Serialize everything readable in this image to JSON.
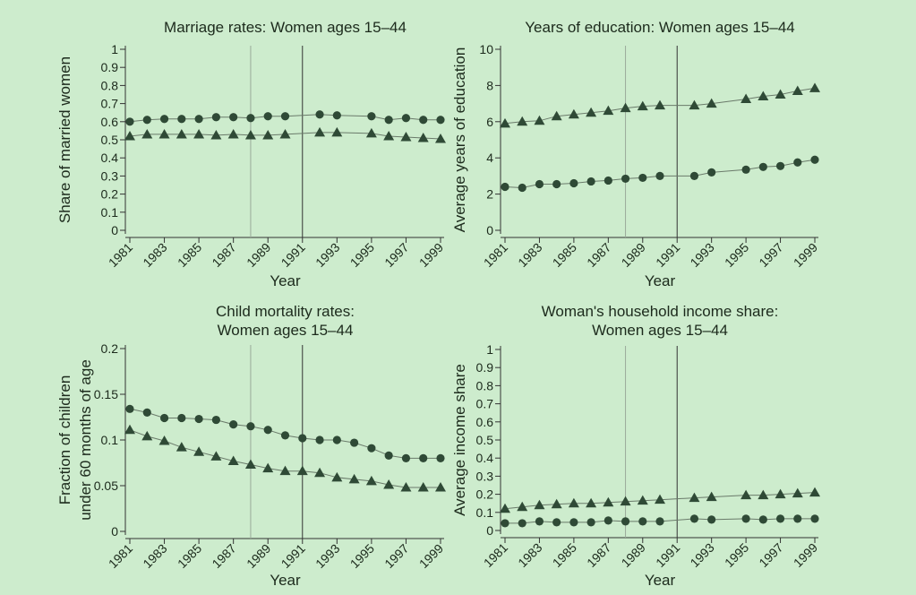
{
  "colors": {
    "background": "#cdeccd",
    "marker": "#2f4a36",
    "line": "#6a7a6a",
    "ref_light": "#9aaa9a",
    "ref_dark": "#333333"
  },
  "chart_data": [
    {
      "type": "line",
      "title": [
        "Marriage rates: Women ages 15–44"
      ],
      "xlabel": "Year",
      "ylabel": [
        "Share of married women"
      ],
      "x": [
        1981,
        1982,
        1983,
        1984,
        1985,
        1986,
        1987,
        1988,
        1989,
        1990,
        1992,
        1993,
        1995,
        1996,
        1997,
        1998,
        1999
      ],
      "xticks": [
        "1981",
        "1983",
        "1985",
        "1987",
        "1989",
        "1991",
        "1993",
        "1995",
        "1997",
        "1999"
      ],
      "ylim": [
        0,
        1
      ],
      "yticks": [
        0,
        0.1,
        0.2,
        0.3,
        0.4,
        0.5,
        0.6,
        0.7,
        0.8,
        0.9,
        1
      ],
      "ytick_labels": [
        "0",
        "0.1",
        "0.2",
        "0.3",
        "0.4",
        "0.5",
        "0.6",
        "0.7",
        "0.8",
        "0.9",
        "1"
      ],
      "reference_lines": [
        1988,
        1991
      ],
      "series": [
        {
          "marker": "circle",
          "values": [
            0.6,
            0.61,
            0.615,
            0.615,
            0.615,
            0.625,
            0.625,
            0.62,
            0.63,
            0.63,
            0.64,
            0.635,
            0.63,
            0.61,
            0.62,
            0.61,
            0.61
          ]
        },
        {
          "marker": "triangle",
          "values": [
            0.52,
            0.53,
            0.53,
            0.53,
            0.53,
            0.525,
            0.53,
            0.525,
            0.525,
            0.53,
            0.54,
            0.54,
            0.535,
            0.52,
            0.515,
            0.51,
            0.505
          ]
        }
      ]
    },
    {
      "type": "line",
      "title": [
        "Years of education: Women ages 15–44"
      ],
      "xlabel": "Year",
      "ylabel": [
        "Average years of education"
      ],
      "x": [
        1981,
        1982,
        1983,
        1984,
        1985,
        1986,
        1987,
        1988,
        1989,
        1990,
        1992,
        1993,
        1995,
        1996,
        1997,
        1998,
        1999
      ],
      "xticks": [
        "1981",
        "1983",
        "1985",
        "1987",
        "1989",
        "1991",
        "1993",
        "1995",
        "1997",
        "1999"
      ],
      "ylim": [
        0,
        10
      ],
      "yticks": [
        0,
        2,
        4,
        6,
        8,
        10
      ],
      "ytick_labels": [
        "0",
        "2",
        "4",
        "6",
        "8",
        "10"
      ],
      "reference_lines": [
        1988,
        1991
      ],
      "series": [
        {
          "marker": "circle",
          "values": [
            2.4,
            2.35,
            2.55,
            2.55,
            2.6,
            2.7,
            2.75,
            2.85,
            2.9,
            3.0,
            3.0,
            3.2,
            3.35,
            3.5,
            3.55,
            3.75,
            3.9
          ]
        },
        {
          "marker": "triangle",
          "values": [
            5.9,
            6.0,
            6.05,
            6.3,
            6.4,
            6.5,
            6.6,
            6.75,
            6.85,
            6.9,
            6.9,
            7.0,
            7.25,
            7.4,
            7.5,
            7.7,
            7.85
          ]
        }
      ]
    },
    {
      "type": "line",
      "title": [
        "Child mortality rates:",
        "Women ages 15–44"
      ],
      "xlabel": "Year",
      "ylabel": [
        "Fraction of children",
        "under 60 months of age"
      ],
      "x": [
        1981,
        1982,
        1983,
        1984,
        1985,
        1986,
        1987,
        1988,
        1989,
        1990,
        1991,
        1992,
        1993,
        1994,
        1995,
        1996,
        1997,
        1998,
        1999
      ],
      "xticks": [
        "1981",
        "1983",
        "1985",
        "1987",
        "1989",
        "1991",
        "1993",
        "1995",
        "1997",
        "1999"
      ],
      "ylim": [
        0,
        0.2
      ],
      "yticks": [
        0,
        0.05,
        0.1,
        0.15,
        0.2
      ],
      "ytick_labels": [
        "0",
        "0.05",
        "0.1",
        "0.15",
        "0.2"
      ],
      "reference_lines": [
        1988,
        1991
      ],
      "series": [
        {
          "marker": "circle",
          "values": [
            0.134,
            0.13,
            0.124,
            0.124,
            0.123,
            0.122,
            0.117,
            0.115,
            0.111,
            0.105,
            0.102,
            0.1,
            0.1,
            0.097,
            0.091,
            0.083,
            0.08,
            0.08,
            0.08
          ]
        },
        {
          "marker": "triangle",
          "values": [
            0.111,
            0.104,
            0.099,
            0.092,
            0.087,
            0.082,
            0.077,
            0.073,
            0.069,
            0.066,
            0.066,
            0.064,
            0.059,
            0.057,
            0.055,
            0.051,
            0.048,
            0.048,
            0.048
          ]
        }
      ]
    },
    {
      "type": "line",
      "title": [
        "Woman's household income share:",
        "Women ages 15–44"
      ],
      "xlabel": "Year",
      "ylabel": [
        "Average income share"
      ],
      "x": [
        1981,
        1982,
        1983,
        1984,
        1985,
        1986,
        1987,
        1988,
        1989,
        1990,
        1992,
        1993,
        1995,
        1996,
        1997,
        1998,
        1999
      ],
      "xticks": [
        "1981",
        "1983",
        "1985",
        "1987",
        "1989",
        "1991",
        "1993",
        "1995",
        "1997",
        "1999"
      ],
      "ylim": [
        0,
        1
      ],
      "yticks": [
        0,
        0.1,
        0.2,
        0.3,
        0.4,
        0.5,
        0.6,
        0.7,
        0.8,
        0.9,
        1
      ],
      "ytick_labels": [
        "0",
        "0.1",
        "0.2",
        "0.3",
        "0.4",
        "0.5",
        "0.6",
        "0.7",
        "0.8",
        "0.9",
        "1"
      ],
      "reference_lines": [
        1988,
        1991
      ],
      "series": [
        {
          "marker": "circle",
          "values": [
            0.04,
            0.04,
            0.05,
            0.045,
            0.045,
            0.045,
            0.055,
            0.05,
            0.05,
            0.05,
            0.065,
            0.06,
            0.065,
            0.06,
            0.065,
            0.065,
            0.065
          ]
        },
        {
          "marker": "triangle",
          "values": [
            0.12,
            0.13,
            0.14,
            0.145,
            0.15,
            0.15,
            0.155,
            0.16,
            0.165,
            0.17,
            0.18,
            0.185,
            0.195,
            0.195,
            0.2,
            0.205,
            0.21
          ]
        }
      ]
    }
  ]
}
